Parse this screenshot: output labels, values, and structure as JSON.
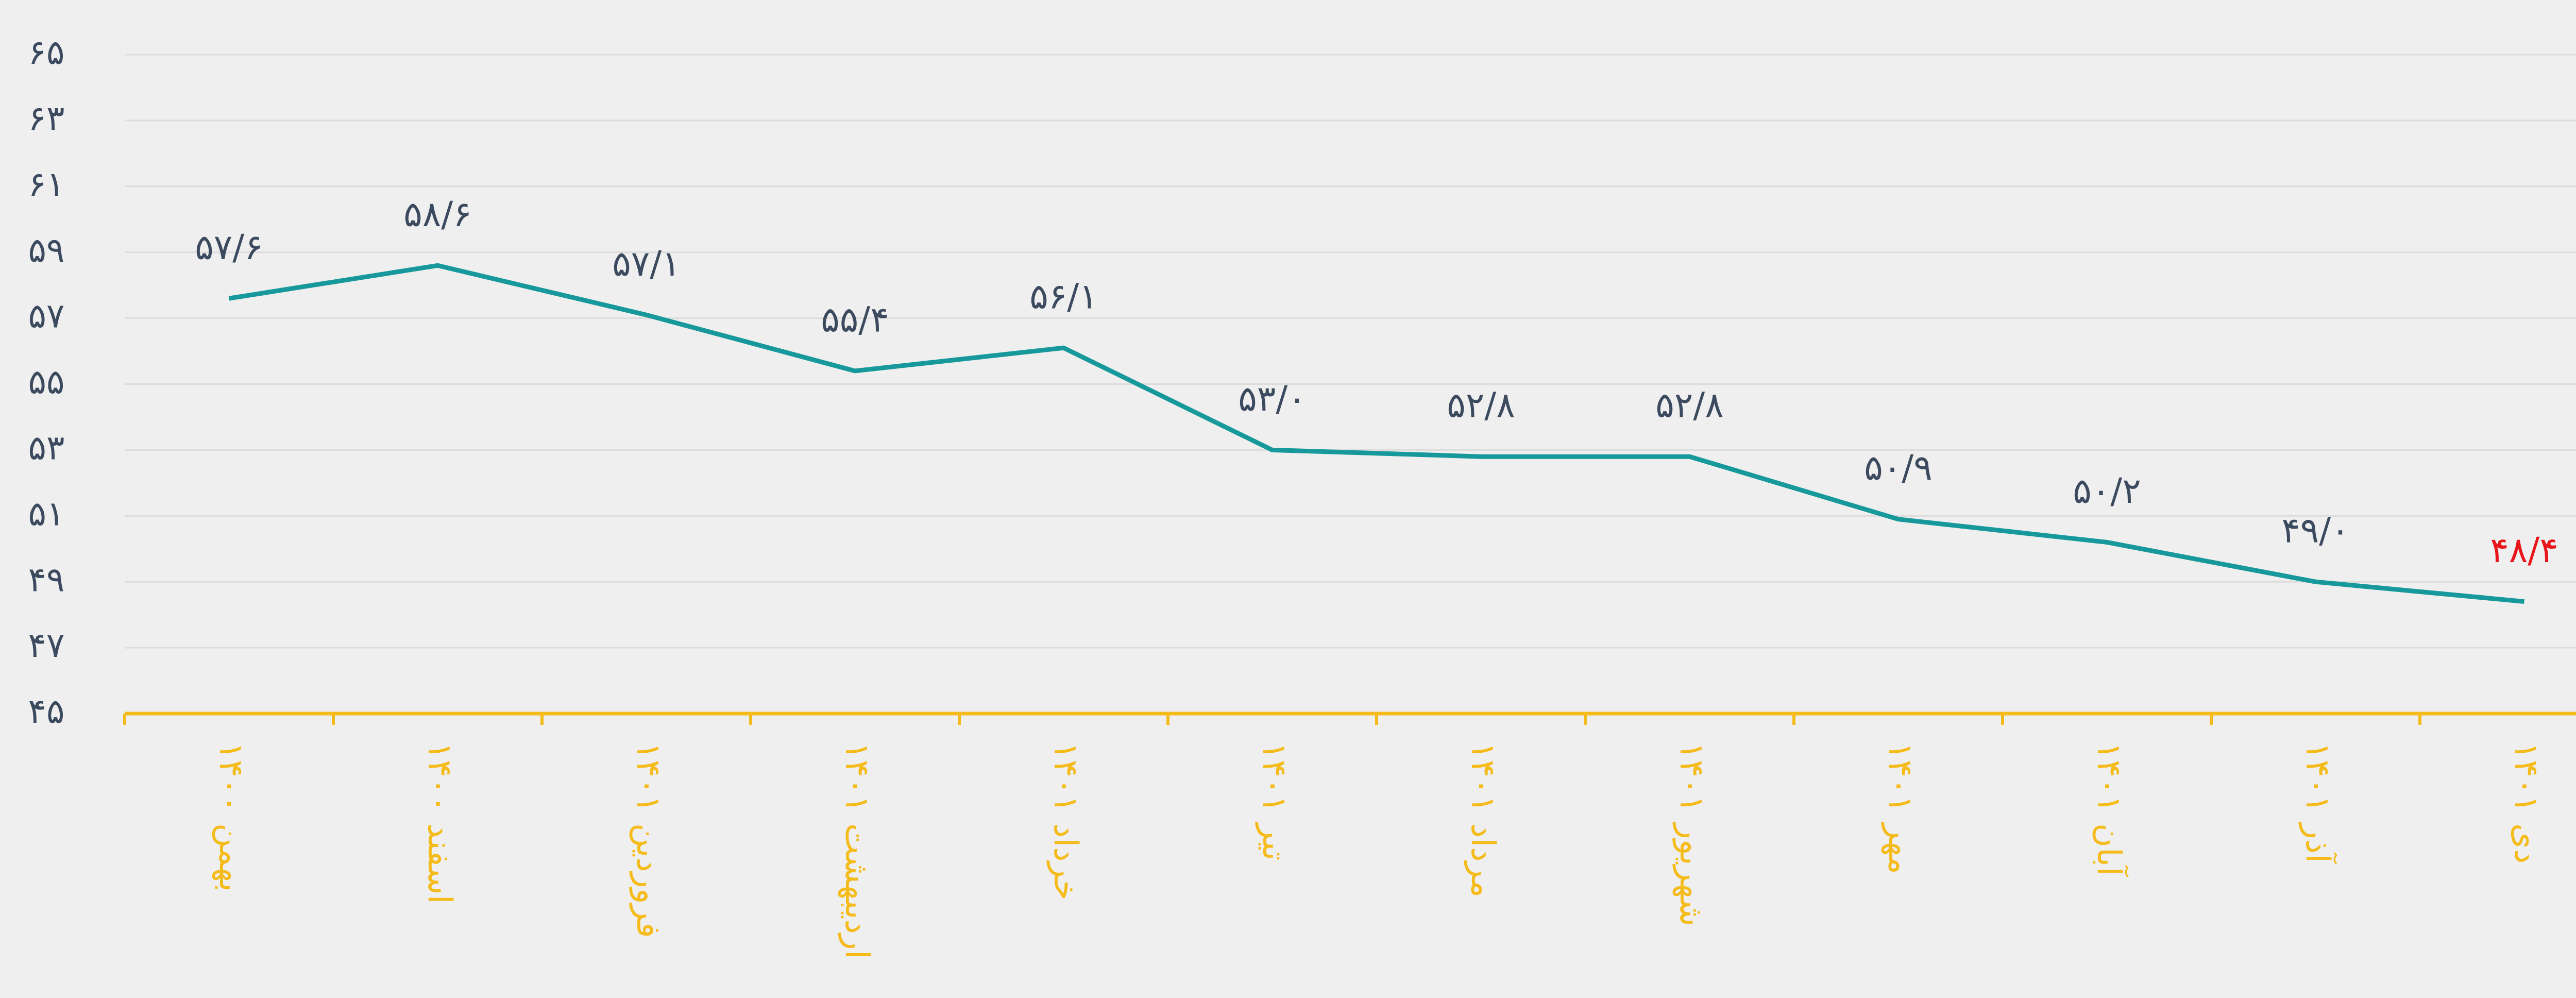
{
  "chart_data": {
    "type": "line",
    "categories": [
      "بهمن ۱۴۰۰",
      "اسفند ۱۴۰۰",
      "فروردین ۱۴۰۱",
      "اردیبهشت ۱۴۰۱",
      "خرداد ۱۴۰۱",
      "تیر ۱۴۰۱",
      "مرداد ۱۴۰۱",
      "شهریور ۱۴۰۱",
      "مهر ۱۴۰۱",
      "آبان ۱۴۰۱",
      "آذر ۱۴۰۱",
      "دی ۱۴۰۱"
    ],
    "values": [
      57.6,
      58.6,
      57.1,
      55.4,
      56.1,
      53.0,
      52.8,
      52.8,
      50.9,
      50.2,
      49.0,
      48.4
    ],
    "value_labels": [
      "۵۷/۶",
      "۵۸/۶",
      "۵۷/۱",
      "۵۵/۴",
      "۵۶/۱",
      "۵۳/۰",
      "۵۲/۸",
      "۵۲/۸",
      "۵۰/۹",
      "۵۰/۲",
      "۴۹/۰",
      "۴۸/۴"
    ],
    "value_label_colors": [
      "#3b4a5e",
      "#3b4a5e",
      "#3b4a5e",
      "#3b4a5e",
      "#3b4a5e",
      "#3b4a5e",
      "#3b4a5e",
      "#3b4a5e",
      "#3b4a5e",
      "#3b4a5e",
      "#3b4a5e",
      "#e8151b"
    ],
    "color": "#17999b",
    "axis_color": "#f4bb1a",
    "ylim": [
      45,
      65
    ],
    "yticks": [
      {
        "value": 45,
        "label": "۴۵"
      },
      {
        "value": 47,
        "label": "۴۷"
      },
      {
        "value": 49,
        "label": "۴۹"
      },
      {
        "value": 51,
        "label": "۵۱"
      },
      {
        "value": 53,
        "label": "۵۳"
      },
      {
        "value": 55,
        "label": "۵۵"
      },
      {
        "value": 57,
        "label": "۵۷"
      },
      {
        "value": 59,
        "label": "۵۹"
      },
      {
        "value": 61,
        "label": "۶۱"
      },
      {
        "value": 63,
        "label": "۶۳"
      },
      {
        "value": 65,
        "label": "۶۵"
      }
    ],
    "grid": true
  }
}
